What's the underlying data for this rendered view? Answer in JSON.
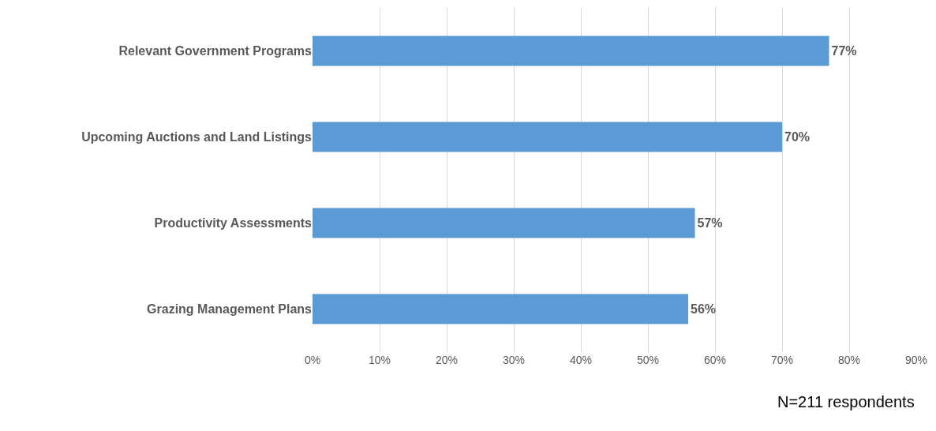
{
  "chart_data": {
    "type": "bar",
    "orientation": "horizontal",
    "categories": [
      "Relevant Government Programs",
      "Upcoming Auctions and Land Listings",
      "Productivity Assessments",
      "Grazing Management Plans"
    ],
    "values": [
      77,
      70,
      57,
      56
    ],
    "color": "#5b9bd5",
    "value_labels": [
      "77%",
      "70%",
      "57%",
      "56%"
    ],
    "xlim": [
      0,
      90
    ],
    "xticks": [
      {
        "value": 0,
        "label": "0%"
      },
      {
        "value": 10,
        "label": "10%"
      },
      {
        "value": 20,
        "label": "20%"
      },
      {
        "value": 30,
        "label": "30%"
      },
      {
        "value": 40,
        "label": "40%"
      },
      {
        "value": 50,
        "label": "50%"
      },
      {
        "value": 60,
        "label": "60%"
      },
      {
        "value": 70,
        "label": "70%"
      },
      {
        "value": 80,
        "label": "80%"
      },
      {
        "value": 90,
        "label": "90%"
      }
    ],
    "grid": "x",
    "legend": false,
    "annotations": [
      "N=211 respondents"
    ]
  }
}
